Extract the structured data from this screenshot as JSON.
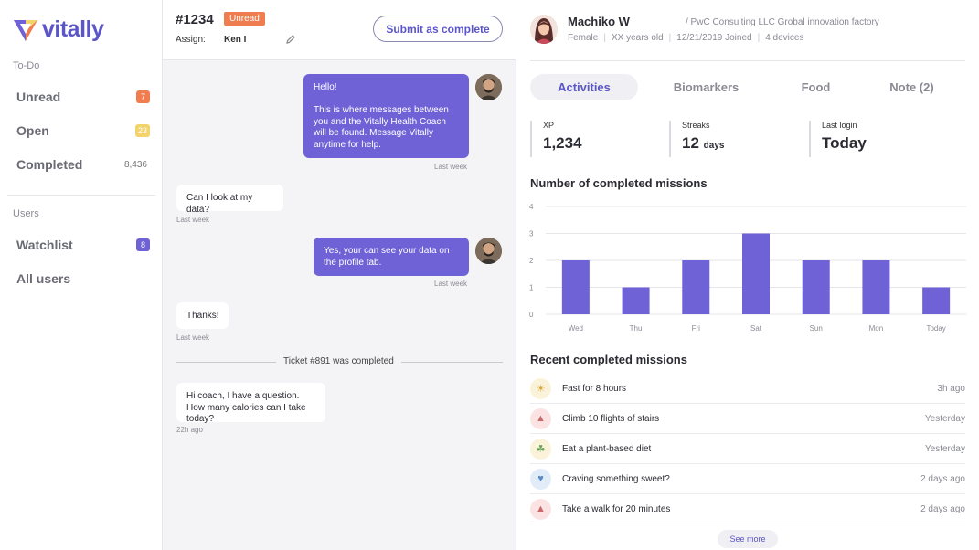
{
  "brand": {
    "name": "vitally"
  },
  "sidebar": {
    "todo_label": "To-Do",
    "todo_items": [
      {
        "label": "Unread",
        "count": "7"
      },
      {
        "label": "Open",
        "count": "23"
      },
      {
        "label": "Completed",
        "count": "8,436"
      }
    ],
    "users_label": "Users",
    "user_items": [
      {
        "label": "Watchlist",
        "count": "8"
      },
      {
        "label": "All users",
        "count": ""
      }
    ]
  },
  "ticket": {
    "id": "#1234",
    "status": "Unread",
    "assign_label": "Assign:",
    "assignee": "Ken I",
    "submit_label": "Submit as complete"
  },
  "messages": [
    {
      "direction": "out",
      "text": "Hello!\n\nThis is where messages between you and the Vitally Health Coach will be found. Message Vitally anytime for help.",
      "time": "Last week"
    },
    {
      "direction": "in",
      "text": "Can I look at my data?",
      "time": "Last week"
    },
    {
      "direction": "out",
      "text": "Yes, your can see your data on the profile tab.",
      "time": "Last week"
    },
    {
      "direction": "in",
      "text": "Thanks!",
      "time": "Last week"
    },
    {
      "direction": "in",
      "text": "Hi coach, I have a question. How many calories can I take today?",
      "time": "22h ago"
    }
  ],
  "system_note": "Ticket #891 was completed",
  "profile": {
    "name": "Machiko W",
    "org": "/ PwC Consulting LLC Grobal innovation factory",
    "gender": "Female",
    "age": "XX years old",
    "joined": "12/21/2019 Joined",
    "devices": "4 devices"
  },
  "tabs": [
    {
      "label": "Activities",
      "active": true
    },
    {
      "label": "Biomarkers",
      "active": false
    },
    {
      "label": "Food",
      "active": false
    },
    {
      "label": "Note (2)",
      "active": false
    }
  ],
  "stats": [
    {
      "label": "XP",
      "value": "1,234",
      "unit": ""
    },
    {
      "label": "Streaks",
      "value": "12",
      "unit": "days"
    },
    {
      "label": "Last login",
      "value": "Today",
      "unit": ""
    }
  ],
  "chart_title": "Number of completed missions",
  "chart_data": {
    "type": "bar",
    "title": "Number of completed missions",
    "categories": [
      "Wed",
      "Thu",
      "Fri",
      "Sat",
      "Sun",
      "Mon",
      "Today"
    ],
    "values": [
      2,
      1,
      2,
      3,
      2,
      2,
      1
    ],
    "yticks": [
      "0",
      "1",
      "2",
      "3",
      "4"
    ],
    "ylim": [
      0,
      4
    ],
    "grid": true,
    "color": "#6e62d6"
  },
  "recent_title": "Recent completed missions",
  "missions": [
    {
      "name": "Fast for 8 hours",
      "time": "3h ago",
      "icon": "running-icon",
      "bg": "#fbf3d9"
    },
    {
      "name": "Climb 10 flights of stairs",
      "time": "Yesterday",
      "icon": "stairs-icon",
      "bg": "#fbe3e3"
    },
    {
      "name": "Eat a plant-based diet",
      "time": "Yesterday",
      "icon": "plant-icon",
      "bg": "#fbf3d9"
    },
    {
      "name": "Craving something sweet?",
      "time": "2 days ago",
      "icon": "sweet-icon",
      "bg": "#e1ecf8"
    },
    {
      "name": "Take a walk for 20 minutes",
      "time": "2 days ago",
      "icon": "walk-icon",
      "bg": "#fbe3e3"
    }
  ],
  "see_more": "See more"
}
